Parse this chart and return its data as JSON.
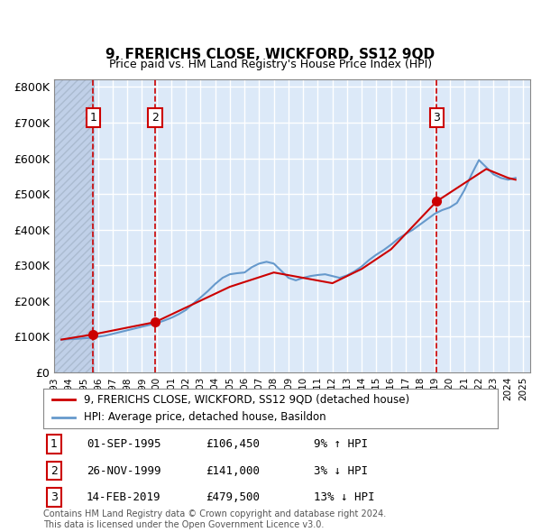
{
  "title": "9, FRERICHS CLOSE, WICKFORD, SS12 9QD",
  "subtitle": "Price paid vs. HM Land Registry's House Price Index (HPI)",
  "hatch_region_end_year": 1995.75,
  "hatch_region_start_year": 1993.0,
  "sale_dates": [
    1995.667,
    1999.9,
    2019.12
  ],
  "sale_prices": [
    106450,
    141000,
    479500
  ],
  "sale_labels": [
    "1",
    "2",
    "3"
  ],
  "ylim": [
    0,
    820000
  ],
  "yticks": [
    0,
    100000,
    200000,
    300000,
    400000,
    500000,
    600000,
    700000,
    800000
  ],
  "ytick_labels": [
    "£0",
    "£100K",
    "£200K",
    "£300K",
    "£400K",
    "£500K",
    "£600K",
    "£700K",
    "£800K"
  ],
  "xlim_start": 1993.0,
  "xlim_end": 2025.5,
  "xtick_years": [
    1993,
    1994,
    1995,
    1996,
    1997,
    1998,
    1999,
    2000,
    2001,
    2002,
    2003,
    2004,
    2005,
    2006,
    2007,
    2008,
    2009,
    2010,
    2011,
    2012,
    2013,
    2014,
    2015,
    2016,
    2017,
    2018,
    2019,
    2020,
    2021,
    2022,
    2023,
    2024,
    2025
  ],
  "bg_color": "#dce9f8",
  "hatch_color": "#c0d0e8",
  "grid_color": "#ffffff",
  "red_line_color": "#cc0000",
  "blue_line_color": "#6699cc",
  "sale_marker_color": "#cc0000",
  "dashed_line_color": "#cc0000",
  "legend_label_red": "9, FRERICHS CLOSE, WICKFORD, SS12 9QD (detached house)",
  "legend_label_blue": "HPI: Average price, detached house, Basildon",
  "table_rows": [
    [
      "1",
      "01-SEP-1995",
      "£106,450",
      "9% ↑ HPI"
    ],
    [
      "2",
      "26-NOV-1999",
      "£141,000",
      "3% ↓ HPI"
    ],
    [
      "3",
      "14-FEB-2019",
      "£479,500",
      "13% ↓ HPI"
    ]
  ],
  "footnote": "Contains HM Land Registry data © Crown copyright and database right 2024.\nThis data is licensed under the Open Government Licence v3.0.",
  "hpi_years": [
    1993.5,
    1994.0,
    1994.5,
    1995.0,
    1995.5,
    1996.0,
    1996.5,
    1997.0,
    1997.5,
    1998.0,
    1998.5,
    1999.0,
    1999.5,
    2000.0,
    2000.5,
    2001.0,
    2001.5,
    2002.0,
    2002.5,
    2003.0,
    2003.5,
    2004.0,
    2004.5,
    2005.0,
    2005.5,
    2006.0,
    2006.5,
    2007.0,
    2007.5,
    2008.0,
    2008.5,
    2009.0,
    2009.5,
    2010.0,
    2010.5,
    2011.0,
    2011.5,
    2012.0,
    2012.5,
    2013.0,
    2013.5,
    2014.0,
    2014.5,
    2015.0,
    2015.5,
    2016.0,
    2016.5,
    2017.0,
    2017.5,
    2018.0,
    2018.5,
    2019.0,
    2019.5,
    2020.0,
    2020.5,
    2021.0,
    2021.5,
    2022.0,
    2022.5,
    2023.0,
    2023.5,
    2024.0,
    2024.5
  ],
  "hpi_values": [
    92000,
    93000,
    94000,
    95500,
    97000,
    100000,
    103000,
    108000,
    113000,
    118000,
    123000,
    128000,
    133000,
    138000,
    145000,
    153000,
    163000,
    175000,
    193000,
    210000,
    228000,
    248000,
    265000,
    275000,
    278000,
    280000,
    295000,
    305000,
    310000,
    305000,
    285000,
    265000,
    258000,
    265000,
    270000,
    273000,
    275000,
    270000,
    265000,
    272000,
    283000,
    297000,
    315000,
    330000,
    343000,
    358000,
    375000,
    388000,
    400000,
    415000,
    430000,
    445000,
    455000,
    462000,
    475000,
    510000,
    555000,
    595000,
    575000,
    555000,
    545000,
    540000,
    545000
  ],
  "price_paid_years": [
    1993.5,
    1995.667,
    1999.9,
    2005.0,
    2008.0,
    2010.0,
    2012.0,
    2014.0,
    2016.0,
    2019.12,
    2021.0,
    2022.5,
    2024.0,
    2024.5
  ],
  "price_paid_values": [
    92000,
    106450,
    141000,
    240000,
    280000,
    265000,
    250000,
    290000,
    345000,
    479500,
    530000,
    570000,
    545000,
    540000
  ]
}
